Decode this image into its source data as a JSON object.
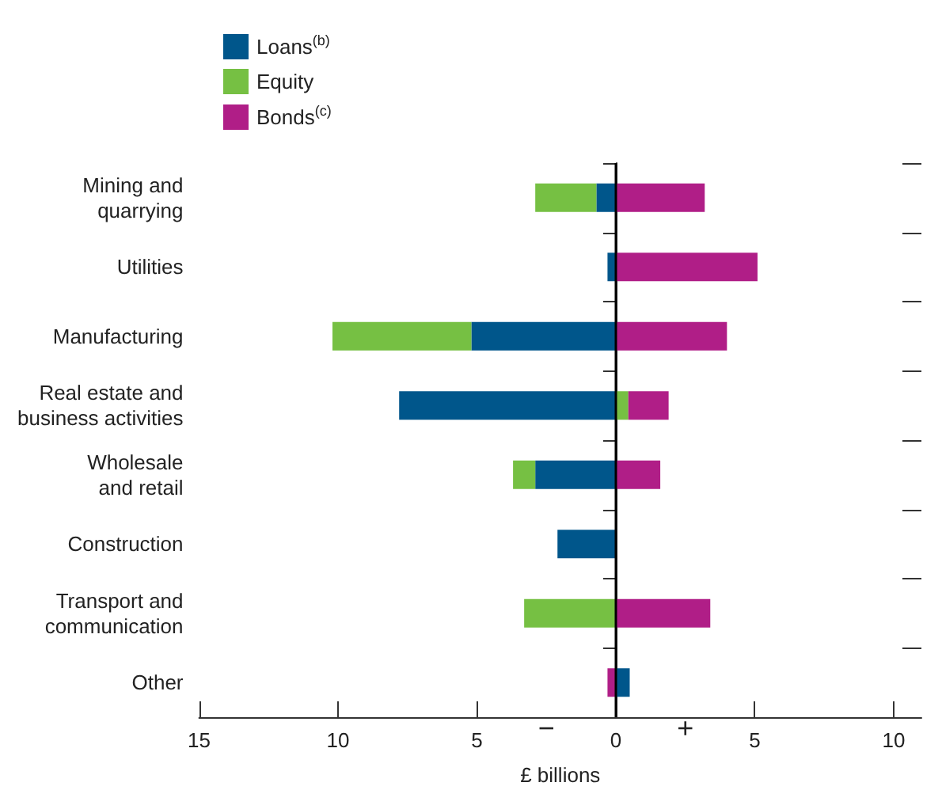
{
  "chart_data": {
    "type": "bar",
    "orientation": "horizontal",
    "stacked": true,
    "xlabel": "£ billions",
    "categories": [
      "Mining and\nquarrying",
      "Utilities",
      "Manufacturing",
      "Real estate and\nbusiness activities",
      "Wholesale\nand retail",
      "Construction",
      "Transport and\ncommunication",
      "Other"
    ],
    "series": [
      {
        "name": "Loans$^{(b)}$",
        "color": "#00568b",
        "values": [
          -0.7,
          -0.3,
          -5.2,
          -7.8,
          -2.9,
          -2.1,
          null,
          0.5
        ]
      },
      {
        "name": "Equity",
        "color": "#76c043",
        "values": [
          -2.2,
          null,
          -5.0,
          0.45,
          -0.8,
          null,
          -3.3,
          null
        ]
      },
      {
        "name": "Bonds$^{(c)}$",
        "color": "#b01e87",
        "values": [
          3.2,
          5.1,
          4.0,
          1.45,
          1.6,
          null,
          3.4,
          -0.3
        ]
      }
    ],
    "xlim": [
      -15,
      11
    ],
    "xticks": [
      {
        "value": -15,
        "label": "15"
      },
      {
        "value": -10,
        "label": "10"
      },
      {
        "value": -5,
        "label": "5"
      },
      0,
      5,
      10
    ],
    "ref_lines": [
      {
        "axis": "x",
        "value": 0,
        "color": "#000000"
      }
    ],
    "annotations": [
      "−",
      "+"
    ],
    "grid": false,
    "legend": "top left"
  }
}
